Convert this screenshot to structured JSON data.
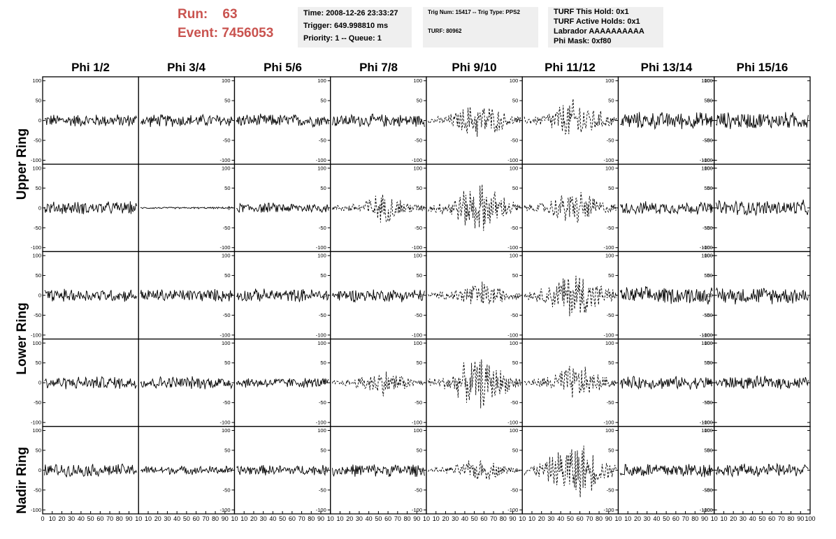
{
  "header": {
    "run_label": "Run:    63",
    "event_label": "Event: 7456053",
    "time_box": {
      "line1": "Time: 2008-12-26 23:33:27",
      "line2": "Trigger: 649.998810 ms",
      "line3": "Priority: 1 -- Queue: 1"
    },
    "trig_box": {
      "line1": "Trig Num: 15417 -- Trig Type: PPS2",
      "line2": "TURF: 80962"
    },
    "turf_box": {
      "line1": "TURF This Hold: 0x1",
      "line2": "TURF Active Holds: 0x1",
      "line3": "Labrador AAAAAAAAAA",
      "line4": "Phi Mask: 0xf80"
    }
  },
  "columns": [
    "Phi 1/2",
    "Phi 3/4",
    "Phi 5/6",
    "Phi 7/8",
    "Phi 9/10",
    "Phi 11/12",
    "Phi 13/14",
    "Phi 15/16"
  ],
  "ring_labels": [
    "Upper Ring",
    "Lower Ring",
    "Nadir Ring"
  ],
  "chart_data": {
    "type": "line",
    "rows": 5,
    "cols": 8,
    "ylim": [
      -110,
      110
    ],
    "xlim": [
      0,
      100
    ],
    "y_ticks": [
      100,
      50,
      0,
      -50,
      -100
    ],
    "y_tick_labels": [
      "100",
      "50",
      "0",
      "-50",
      "-100"
    ],
    "x_ticks": [
      0,
      10,
      20,
      30,
      40,
      50,
      60,
      70,
      80,
      90,
      100
    ],
    "x_tick_labels_first": [
      "0",
      "10",
      "20",
      "30",
      "40",
      "50",
      "60",
      "70",
      "80",
      "90",
      "10"
    ],
    "x_tick_labels_mid": [
      "10",
      "20",
      "30",
      "40",
      "50",
      "60",
      "70",
      "80",
      "90",
      "10"
    ],
    "x_tick_labels_last": [
      "10",
      "20",
      "30",
      "40",
      "50",
      "60",
      "70",
      "80",
      "90",
      "100"
    ],
    "dashed_panels": [
      [
        0,
        4
      ],
      [
        0,
        5
      ],
      [
        1,
        3
      ],
      [
        1,
        4
      ],
      [
        1,
        5
      ],
      [
        2,
        4
      ],
      [
        2,
        5
      ],
      [
        3,
        3
      ],
      [
        3,
        4
      ],
      [
        3,
        5
      ],
      [
        4,
        4
      ],
      [
        4,
        5
      ]
    ],
    "amplitudes": [
      [
        15,
        15,
        15,
        15,
        25,
        30,
        20,
        20
      ],
      [
        15,
        2,
        12,
        20,
        35,
        25,
        15,
        18
      ],
      [
        15,
        15,
        15,
        15,
        20,
        35,
        20,
        20
      ],
      [
        15,
        15,
        12,
        18,
        35,
        25,
        15,
        15
      ],
      [
        15,
        10,
        12,
        15,
        15,
        40,
        18,
        15
      ]
    ]
  }
}
